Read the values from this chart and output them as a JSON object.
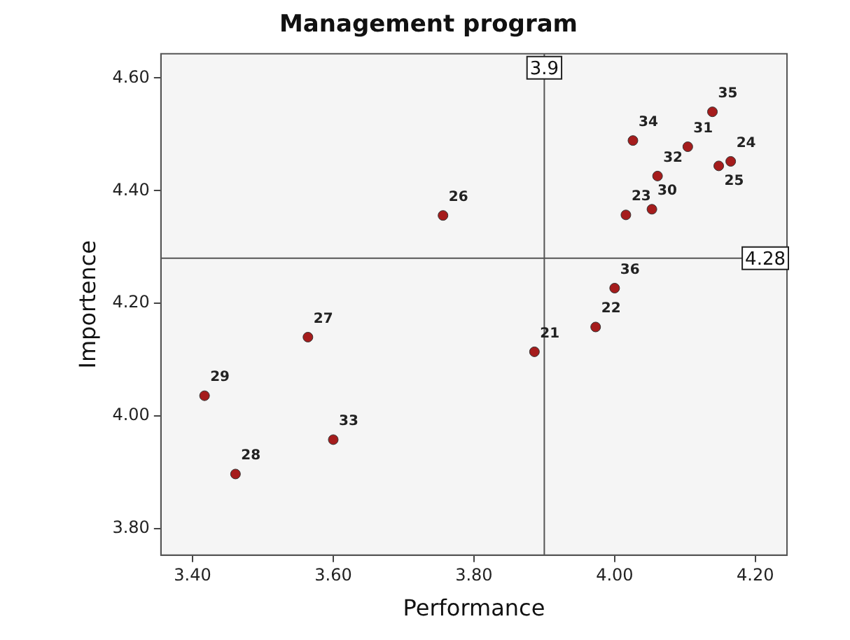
{
  "chart_data": {
    "type": "scatter",
    "title": "Management program",
    "xlabel": "Performance",
    "ylabel": "Importence",
    "x": [
      3.886,
      3.973,
      4.016,
      4.165,
      4.148,
      3.756,
      3.564,
      3.461,
      3.417,
      4.053,
      4.104,
      4.061,
      3.6,
      4.026,
      4.139,
      4.0
    ],
    "series": [
      {
        "color": "#a51c1c",
        "values": [
          4.114,
          4.158,
          4.357,
          4.452,
          4.444,
          4.356,
          4.14,
          3.897,
          4.036,
          4.367,
          4.478,
          4.426,
          3.958,
          4.489,
          4.54,
          4.227
        ]
      }
    ],
    "annotations": [
      {
        "text": "21",
        "x": 3.886,
        "y": 4.114
      },
      {
        "text": "22",
        "x": 3.973,
        "y": 4.158
      },
      {
        "text": "23",
        "x": 4.016,
        "y": 4.357
      },
      {
        "text": "24",
        "x": 4.165,
        "y": 4.452
      },
      {
        "text": "25",
        "x": 4.148,
        "y": 4.444
      },
      {
        "text": "26",
        "x": 3.756,
        "y": 4.356
      },
      {
        "text": "27",
        "x": 3.564,
        "y": 4.14
      },
      {
        "text": "28",
        "x": 3.461,
        "y": 3.897
      },
      {
        "text": "29",
        "x": 3.417,
        "y": 4.036
      },
      {
        "text": "30",
        "x": 4.053,
        "y": 4.367
      },
      {
        "text": "31",
        "x": 4.104,
        "y": 4.478
      },
      {
        "text": "32",
        "x": 4.061,
        "y": 4.426
      },
      {
        "text": "33",
        "x": 3.6,
        "y": 3.958
      },
      {
        "text": "34",
        "x": 4.026,
        "y": 4.489
      },
      {
        "text": "35",
        "x": 4.139,
        "y": 4.54
      },
      {
        "text": "36",
        "x": 4.0,
        "y": 4.227
      }
    ],
    "xlim": [
      3.355,
      4.245
    ],
    "xticks": [
      {
        "value": 3.4,
        "label": "3.40"
      },
      {
        "value": 3.6,
        "label": "3.60"
      },
      {
        "value": 3.8,
        "label": "3.80"
      },
      {
        "value": 4.0,
        "label": "4.00"
      },
      {
        "value": 4.2,
        "label": "4.20"
      }
    ],
    "ylim": [
      3.753,
      4.643
    ],
    "yticks": [
      {
        "value": 3.8,
        "label": "3.80"
      },
      {
        "value": 4.0,
        "label": "4.00"
      },
      {
        "value": 4.2,
        "label": "4.20"
      },
      {
        "value": 4.4,
        "label": "4.40"
      },
      {
        "value": 4.6,
        "label": "4.60"
      }
    ],
    "ref_lines": [
      {
        "axis": "x",
        "value": 3.9,
        "label": "3.9",
        "color": "#555555"
      },
      {
        "axis": "y",
        "value": 4.28,
        "label": "4.28",
        "color": "#555555"
      }
    ],
    "grid": false,
    "legend": false,
    "marker": "circle"
  }
}
